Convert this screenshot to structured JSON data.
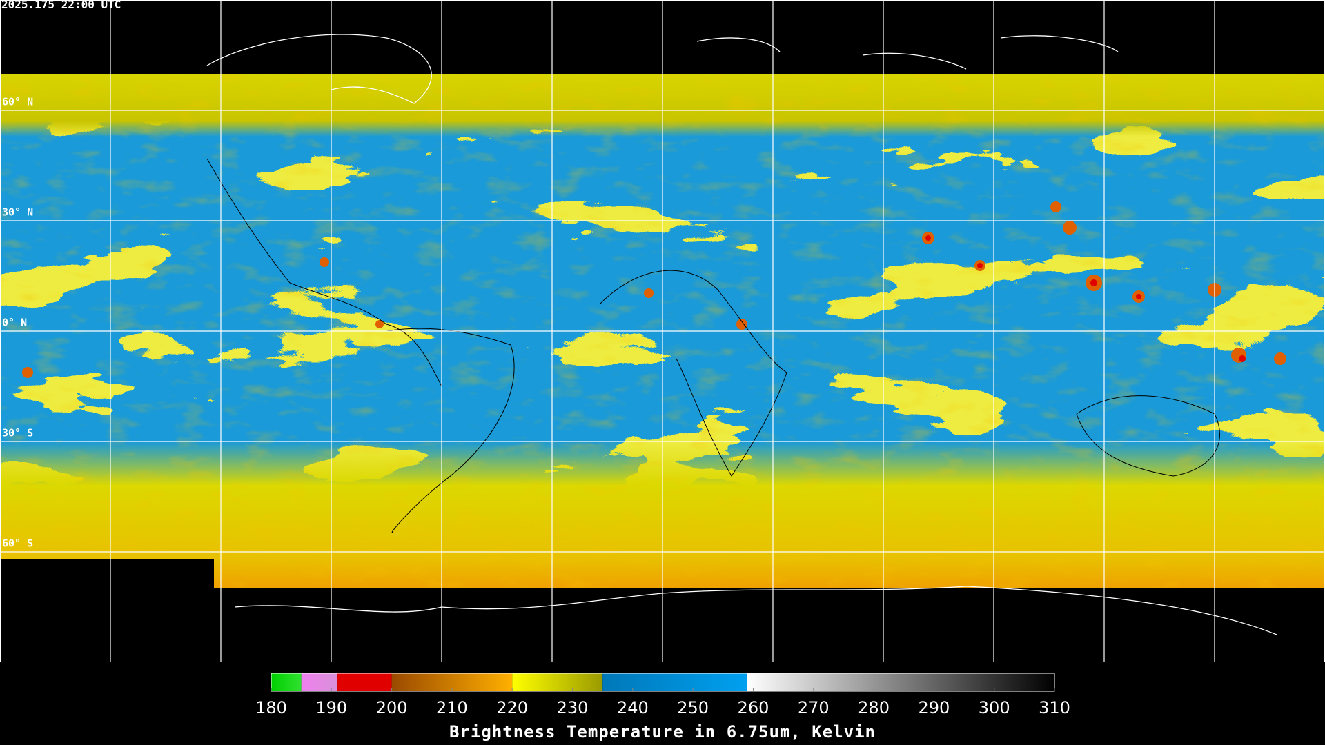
{
  "header": {
    "timestamp": "2025.175 22:00 UTC"
  },
  "map": {
    "lat_labels": [
      "60° N",
      "30° N",
      "0° N",
      "30° S",
      "60° S"
    ]
  },
  "colorbar": {
    "title": "Brightness Temperature in 6.75um, Kelvin",
    "range": [
      180,
      310
    ],
    "ticks": [
      180,
      190,
      200,
      210,
      220,
      230,
      240,
      250,
      260,
      270,
      280,
      290,
      300,
      310
    ],
    "segments": [
      {
        "from": 180,
        "to": 185,
        "colors": [
          "#00d000",
          "#30e030"
        ]
      },
      {
        "from": 185,
        "to": 191,
        "colors": [
          "#f080f0",
          "#d890d8"
        ]
      },
      {
        "from": 191,
        "to": 200,
        "colors": [
          "#e00000",
          "#e00000"
        ]
      },
      {
        "from": 200,
        "to": 220,
        "colors": [
          "#9a4a00",
          "#ffb000"
        ]
      },
      {
        "from": 220,
        "to": 235,
        "colors": [
          "#ffff00",
          "#9a9a00"
        ]
      },
      {
        "from": 235,
        "to": 259,
        "colors": [
          "#0078b8",
          "#00a0f0"
        ]
      },
      {
        "from": 259,
        "to": 310,
        "colors": [
          "#ffffff",
          "#000000"
        ]
      }
    ]
  }
}
